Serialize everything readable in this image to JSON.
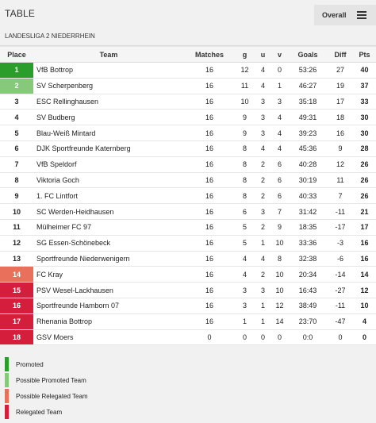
{
  "header": {
    "title": "TABLE",
    "overall_label": "Overall"
  },
  "league": "LANDESLIGA 2 NIEDERRHEIN",
  "columns": {
    "place": "Place",
    "team": "Team",
    "matches": "Matches",
    "g": "g",
    "u": "u",
    "v": "v",
    "goals": "Goals",
    "diff": "Diff",
    "pts": "Pts"
  },
  "colors": {
    "promoted": "#2a9d2a",
    "possible_promoted": "#86c97a",
    "possible_relegated": "#e9705a",
    "relegated": "#d51d3c"
  },
  "rows": [
    {
      "place": "1",
      "team": "VfB Bottrop",
      "matches": "16",
      "g": "12",
      "u": "4",
      "v": "0",
      "goals": "53:26",
      "diff": "27",
      "pts": "40",
      "status": "promoted"
    },
    {
      "place": "2",
      "team": "SV Scherpenberg",
      "matches": "16",
      "g": "11",
      "u": "4",
      "v": "1",
      "goals": "46:27",
      "diff": "19",
      "pts": "37",
      "status": "possible_promoted"
    },
    {
      "place": "3",
      "team": "ESC Rellinghausen",
      "matches": "16",
      "g": "10",
      "u": "3",
      "v": "3",
      "goals": "35:18",
      "diff": "17",
      "pts": "33",
      "status": ""
    },
    {
      "place": "4",
      "team": "SV Budberg",
      "matches": "16",
      "g": "9",
      "u": "3",
      "v": "4",
      "goals": "49:31",
      "diff": "18",
      "pts": "30",
      "status": ""
    },
    {
      "place": "5",
      "team": "Blau-Weiß Mintard",
      "matches": "16",
      "g": "9",
      "u": "3",
      "v": "4",
      "goals": "39:23",
      "diff": "16",
      "pts": "30",
      "status": ""
    },
    {
      "place": "6",
      "team": "DJK Sportfreunde Katernberg",
      "matches": "16",
      "g": "8",
      "u": "4",
      "v": "4",
      "goals": "45:36",
      "diff": "9",
      "pts": "28",
      "status": ""
    },
    {
      "place": "7",
      "team": "VfB Speldorf",
      "matches": "16",
      "g": "8",
      "u": "2",
      "v": "6",
      "goals": "40:28",
      "diff": "12",
      "pts": "26",
      "status": ""
    },
    {
      "place": "8",
      "team": "Viktoria Goch",
      "matches": "16",
      "g": "8",
      "u": "2",
      "v": "6",
      "goals": "30:19",
      "diff": "11",
      "pts": "26",
      "status": ""
    },
    {
      "place": "9",
      "team": "1. FC Lintfort",
      "matches": "16",
      "g": "8",
      "u": "2",
      "v": "6",
      "goals": "40:33",
      "diff": "7",
      "pts": "26",
      "status": ""
    },
    {
      "place": "10",
      "team": "SC Werden-Heidhausen",
      "matches": "16",
      "g": "6",
      "u": "3",
      "v": "7",
      "goals": "31:42",
      "diff": "-11",
      "pts": "21",
      "status": ""
    },
    {
      "place": "11",
      "team": "Mülheimer FC 97",
      "matches": "16",
      "g": "5",
      "u": "2",
      "v": "9",
      "goals": "18:35",
      "diff": "-17",
      "pts": "17",
      "status": ""
    },
    {
      "place": "12",
      "team": "SG Essen-Schönebeck",
      "matches": "16",
      "g": "5",
      "u": "1",
      "v": "10",
      "goals": "33:36",
      "diff": "-3",
      "pts": "16",
      "status": ""
    },
    {
      "place": "13",
      "team": "Sportfreunde Niederwenigern",
      "matches": "16",
      "g": "4",
      "u": "4",
      "v": "8",
      "goals": "32:38",
      "diff": "-6",
      "pts": "16",
      "status": ""
    },
    {
      "place": "14",
      "team": "FC Kray",
      "matches": "16",
      "g": "4",
      "u": "2",
      "v": "10",
      "goals": "20:34",
      "diff": "-14",
      "pts": "14",
      "status": "possible_relegated"
    },
    {
      "place": "15",
      "team": "PSV Wesel-Lackhausen",
      "matches": "16",
      "g": "3",
      "u": "3",
      "v": "10",
      "goals": "16:43",
      "diff": "-27",
      "pts": "12",
      "status": "relegated"
    },
    {
      "place": "16",
      "team": "Sportfreunde Hamborn 07",
      "matches": "16",
      "g": "3",
      "u": "1",
      "v": "12",
      "goals": "38:49",
      "diff": "-11",
      "pts": "10",
      "status": "relegated"
    },
    {
      "place": "17",
      "team": "Rhenania Bottrop",
      "matches": "16",
      "g": "1",
      "u": "1",
      "v": "14",
      "goals": "23:70",
      "diff": "-47",
      "pts": "4",
      "status": "relegated"
    },
    {
      "place": "18",
      "team": "GSV Moers",
      "matches": "0",
      "g": "0",
      "u": "0",
      "v": "0",
      "goals": "0:0",
      "diff": "0",
      "pts": "0",
      "status": "relegated"
    }
  ],
  "legend": [
    {
      "label": "Promoted",
      "status": "promoted"
    },
    {
      "label": "Possible Promoted Team",
      "status": "possible_promoted"
    },
    {
      "label": "Possible Relegated Team",
      "status": "possible_relegated"
    },
    {
      "label": "Relegated Team",
      "status": "relegated"
    }
  ]
}
